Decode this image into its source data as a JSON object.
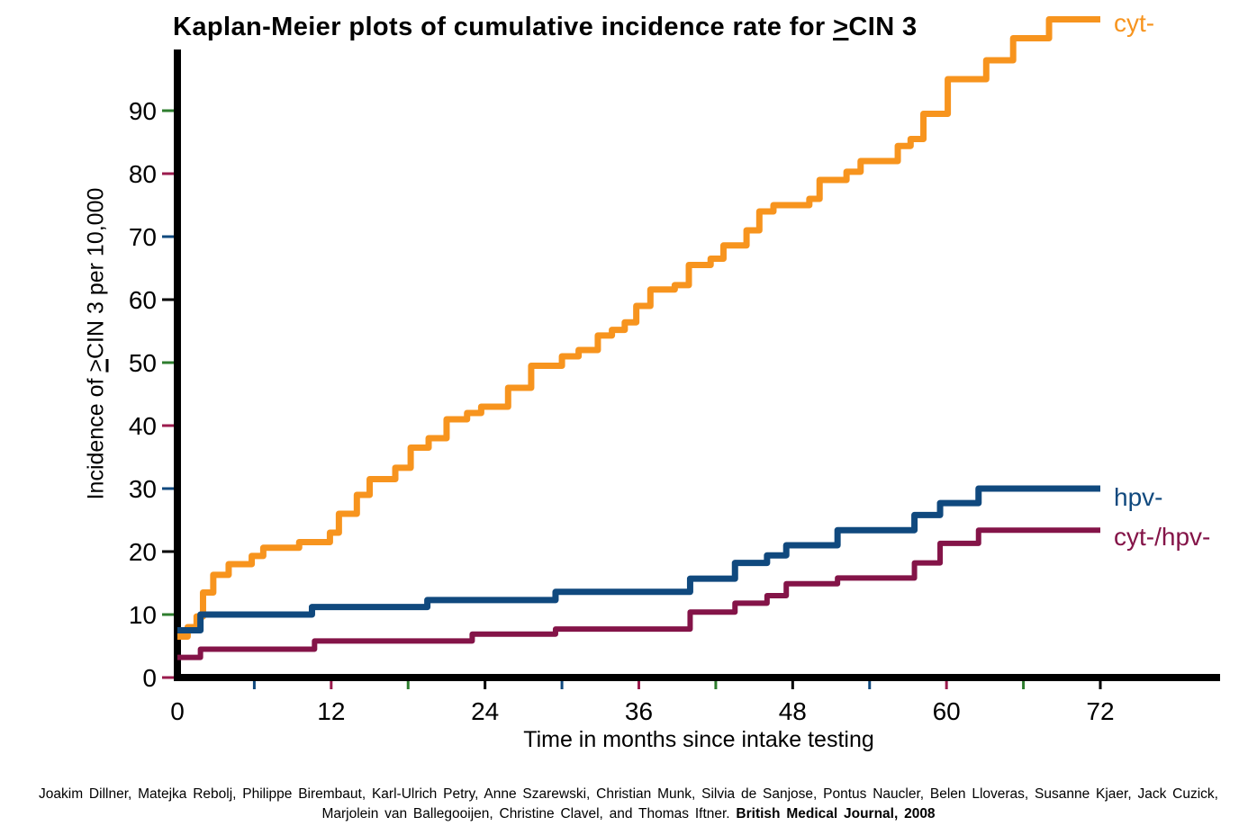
{
  "title": {
    "prefix": "Kaplan-Meier plots of cumulative incidence rate for ",
    "geq": ">",
    "suffix": "CIN 3"
  },
  "y_axis": {
    "label_prefix": "Incidence of ",
    "label_geq": ">",
    "label_suffix": "CIN 3 per 10,000"
  },
  "x_axis": {
    "label": "Time in months since intake testing"
  },
  "citation": {
    "line1": "Joakim Dillner, Matejka Rebolj, Philippe Birembaut, Karl-Ulrich Petry, Anne Szarewski, Christian Munk, Silvia de Sanjose, Pontus Naucler, Belen Lloveras, Susanne Kjaer, Jack Cuzick,",
    "line2_text": "Marjolein van Ballegooijen, Christine Clavel, and Thomas Iftner. ",
    "line2_bold": "British Medical Journal, 2008"
  },
  "chart_data": {
    "type": "line",
    "subtype": "kaplan-meier-step",
    "title": "Kaplan-Meier plots of cumulative incidence rate for >CIN 3",
    "xlabel": "Time in months since intake testing",
    "ylabel": "Incidence of >CIN 3 per 10,000",
    "xlim": [
      0,
      81
    ],
    "ylim": [
      0,
      100
    ],
    "grid": false,
    "legend_position": "end-of-line-labels",
    "axis_color": "#000000",
    "x_ticks": [
      0,
      12,
      24,
      36,
      48,
      60,
      72
    ],
    "y_ticks": [
      {
        "v": 0,
        "color": "#9B1B4D"
      },
      {
        "v": 10,
        "color": "#2E7D2E"
      },
      {
        "v": 20,
        "color": "#000000"
      },
      {
        "v": 30,
        "color": "#10497E"
      },
      {
        "v": 40,
        "color": "#9B1B4D"
      },
      {
        "v": 50,
        "color": "#2E7D2E"
      },
      {
        "v": 60,
        "color": "#000000"
      },
      {
        "v": 70,
        "color": "#10497E"
      },
      {
        "v": 80,
        "color": "#9B1B4D"
      },
      {
        "v": 90,
        "color": "#2E7D2E"
      }
    ],
    "x_minor_ticks": [
      {
        "t": 6,
        "color": "#10497E"
      },
      {
        "t": 12,
        "color": "#9B1B4D"
      },
      {
        "t": 18,
        "color": "#2E7D2E"
      },
      {
        "t": 24,
        "color": "#000000"
      },
      {
        "t": 30,
        "color": "#10497E"
      },
      {
        "t": 36,
        "color": "#9B1B4D"
      },
      {
        "t": 42,
        "color": "#2E7D2E"
      },
      {
        "t": 48,
        "color": "#000000"
      },
      {
        "t": 54,
        "color": "#10497E"
      },
      {
        "t": 60,
        "color": "#9B1B4D"
      },
      {
        "t": 66,
        "color": "#2E7D2E"
      },
      {
        "t": 72,
        "color": "#000000"
      }
    ],
    "end_month": 72,
    "series": [
      {
        "name": "cyt-",
        "color": "#F7941E",
        "line_width": 7,
        "steps": [
          [
            0,
            6.5
          ],
          [
            0.8,
            8
          ],
          [
            1.5,
            9.7
          ],
          [
            2,
            13.5
          ],
          [
            2.8,
            16.3
          ],
          [
            4,
            18
          ],
          [
            5.8,
            19.3
          ],
          [
            6.7,
            20.6
          ],
          [
            9.5,
            21.5
          ],
          [
            11.9,
            23
          ],
          [
            12.6,
            26
          ],
          [
            14,
            29
          ],
          [
            15,
            31.5
          ],
          [
            17,
            33.3
          ],
          [
            18.2,
            36.5
          ],
          [
            19.6,
            38
          ],
          [
            21,
            41
          ],
          [
            22.6,
            42
          ],
          [
            23.7,
            43
          ],
          [
            25.8,
            46
          ],
          [
            27.6,
            49.5
          ],
          [
            30,
            51
          ],
          [
            31.3,
            52
          ],
          [
            32.8,
            54.3
          ],
          [
            33.9,
            55.2
          ],
          [
            34.9,
            56.4
          ],
          [
            35.8,
            59
          ],
          [
            36.9,
            61.6
          ],
          [
            38.8,
            62.3
          ],
          [
            39.9,
            65.5
          ],
          [
            41.6,
            66.5
          ],
          [
            42.6,
            68.6
          ],
          [
            44.4,
            71
          ],
          [
            45.4,
            74
          ],
          [
            46.5,
            75
          ],
          [
            49.3,
            76
          ],
          [
            50.1,
            79
          ],
          [
            52.2,
            80.3
          ],
          [
            53.3,
            82
          ],
          [
            56.2,
            84.4
          ],
          [
            57.2,
            85.5
          ],
          [
            58.2,
            89.5
          ],
          [
            60.1,
            95
          ],
          [
            63.1,
            98
          ],
          [
            65.2,
            101.5
          ],
          [
            68,
            104.5
          ]
        ]
      },
      {
        "name": "hpv-",
        "color": "#10497E",
        "line_width": 7,
        "steps": [
          [
            0,
            7.5
          ],
          [
            1.8,
            10
          ],
          [
            10.5,
            11.2
          ],
          [
            19.5,
            12.3
          ],
          [
            29.5,
            13.6
          ],
          [
            40,
            15.7
          ],
          [
            43.5,
            18.2
          ],
          [
            46,
            19.4
          ],
          [
            47.5,
            21
          ],
          [
            51.5,
            23.4
          ],
          [
            57.5,
            25.8
          ],
          [
            59.5,
            27.7
          ],
          [
            62.5,
            30
          ]
        ]
      },
      {
        "name": "cyt-/hpv-",
        "color": "#841448",
        "line_width": 6,
        "steps": [
          [
            0,
            3.2
          ],
          [
            1.8,
            4.5
          ],
          [
            10.7,
            5.8
          ],
          [
            23,
            6.9
          ],
          [
            29.5,
            7.7
          ],
          [
            40,
            10.4
          ],
          [
            43.5,
            11.8
          ],
          [
            46,
            13
          ],
          [
            47.5,
            14.9
          ],
          [
            51.5,
            15.8
          ],
          [
            57.5,
            18.2
          ],
          [
            59.5,
            21.3
          ],
          [
            62.5,
            23.4
          ]
        ]
      }
    ]
  }
}
